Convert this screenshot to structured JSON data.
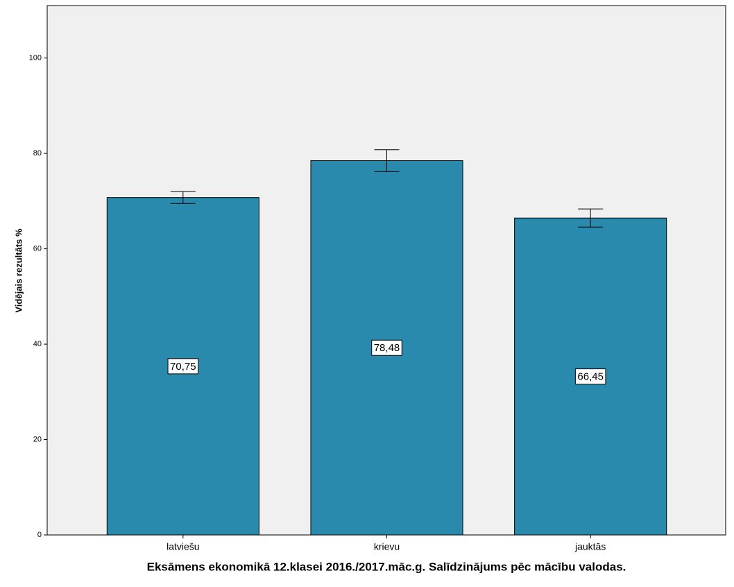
{
  "chart_data": {
    "type": "bar",
    "title": "Eksāmens ekonomikā 12.klasei 2016./2017.māc.g. Salīdzinājums pēc mācību valodas.",
    "y_label": "Vidējais rezultāts %",
    "categories": [
      "latviešu",
      "krievu",
      "jauktās"
    ],
    "values": [
      70.75,
      78.48,
      66.45
    ],
    "value_labels": [
      "70,75",
      "78,48",
      "66,45"
    ],
    "errors": [
      1.25,
      2.3,
      1.9
    ],
    "color": "#2a8aad",
    "ylim": [
      0,
      111
    ],
    "yticks": [
      0,
      20,
      40,
      60,
      80,
      100
    ],
    "grid": false
  }
}
